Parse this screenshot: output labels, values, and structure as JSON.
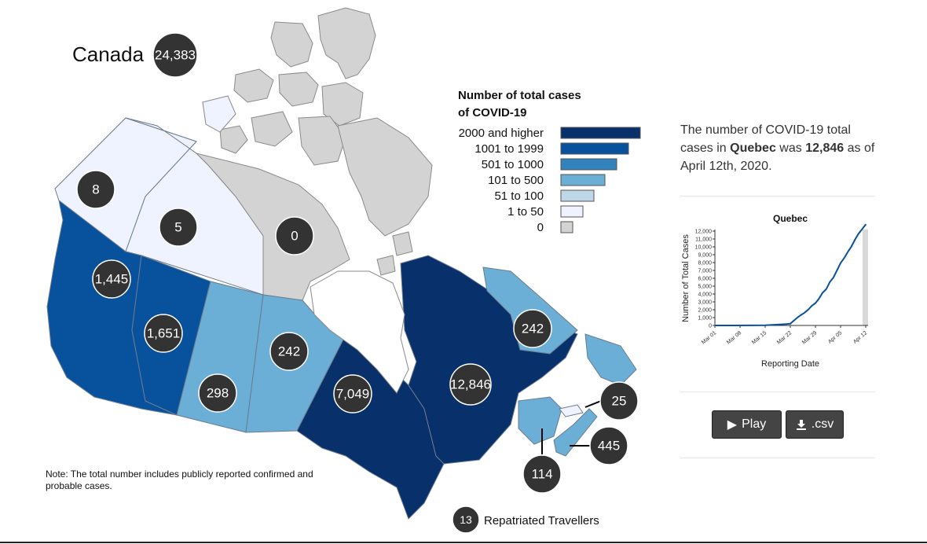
{
  "colors": {
    "c2000": "#08306b",
    "c1001": "#08519c",
    "c501": "#3182bd",
    "c101": "#6baed6",
    "c51": "#bdd7e7",
    "c1": "#eff3ff",
    "c0": "#d3d3d3",
    "bubble": "#333333",
    "line": "#08519c"
  },
  "national": {
    "title": "Canada",
    "total": "24,383"
  },
  "legend": {
    "title_line1": "Number of total cases",
    "title_line2": "of COVID-19",
    "items": [
      {
        "label": "2000 and higher",
        "color_key": "c2000",
        "bar_fraction": 1.0
      },
      {
        "label": "1001 to 1999",
        "color_key": "c1001",
        "bar_fraction": 0.85
      },
      {
        "label": "501 to 1000",
        "color_key": "c501",
        "bar_fraction": 0.7
      },
      {
        "label": "101 to 500",
        "color_key": "c101",
        "bar_fraction": 0.55
      },
      {
        "label": "51 to 100",
        "color_key": "c51",
        "bar_fraction": 0.42
      },
      {
        "label": "1 to 50",
        "color_key": "c1",
        "bar_fraction": 0.28
      },
      {
        "label": "0",
        "color_key": "c0",
        "bar_fraction": 0.15
      }
    ]
  },
  "regions": {
    "yukon": {
      "label": "8",
      "color_key": "c1"
    },
    "nwt": {
      "label": "5",
      "color_key": "c1"
    },
    "nunavut": {
      "label": "0",
      "color_key": "c0"
    },
    "bc": {
      "label": "1,445",
      "color_key": "c1001"
    },
    "alberta": {
      "label": "1,651",
      "color_key": "c1001"
    },
    "saskatchewan": {
      "label": "298",
      "color_key": "c101"
    },
    "manitoba": {
      "label": "242",
      "color_key": "c101"
    },
    "ontario": {
      "label": "7,049",
      "color_key": "c2000"
    },
    "quebec": {
      "label": "12,846",
      "color_key": "c2000"
    },
    "newfoundland": {
      "label": "242",
      "color_key": "c101"
    },
    "pei": {
      "label": "25",
      "color_key": "c1"
    },
    "nova_scotia": {
      "label": "445",
      "color_key": "c101"
    },
    "new_brunswick": {
      "label": "114",
      "color_key": "c101"
    }
  },
  "repatriated": {
    "count": "13",
    "label": "Repatriated Travellers"
  },
  "note": {
    "line1": "Note: The total number includes publicly reported confirmed and",
    "line2": "probable cases."
  },
  "summary": {
    "prefix": "The number of COVID-19 total cases in",
    "province": "Quebec",
    "middle": "was",
    "value": "12,846",
    "suffix": "as of April 12th, 2020."
  },
  "chart_data": {
    "type": "line",
    "title": "Quebec",
    "xlabel": "Reporting Date",
    "ylabel": "Number of Total Cases",
    "ylim": [
      0,
      12000
    ],
    "y_ticks": [
      "0",
      "1,000",
      "2,000",
      "3,000",
      "4,000",
      "5,000",
      "6,000",
      "7,000",
      "8,000",
      "9,000",
      "10,000",
      "11,000",
      "12,000"
    ],
    "x_ticks": [
      "Mar 01",
      "Mar 08",
      "Mar 15",
      "Mar 22",
      "Mar 29",
      "Apr 05",
      "Apr 12"
    ],
    "x_range_days": [
      0,
      42
    ],
    "series": [
      {
        "name": "Quebec",
        "x_days": [
          0,
          5,
          10,
          14,
          16,
          18,
          20,
          21,
          22,
          23,
          24,
          25,
          26,
          27,
          28,
          29,
          30,
          31,
          32,
          33,
          34,
          35,
          36,
          37,
          38,
          39,
          40,
          41,
          42
        ],
        "values": [
          0,
          2,
          9,
          24,
          74,
          121,
          181,
          219,
          628,
          1013,
          1339,
          1629,
          2021,
          2498,
          2840,
          3430,
          4162,
          4611,
          5518,
          6101,
          6997,
          7944,
          8580,
          9340,
          10031,
          10912,
          11677,
          12246,
          12846
        ]
      }
    ]
  },
  "buttons": {
    "play_label": "Play",
    "csv_label": ".csv"
  }
}
